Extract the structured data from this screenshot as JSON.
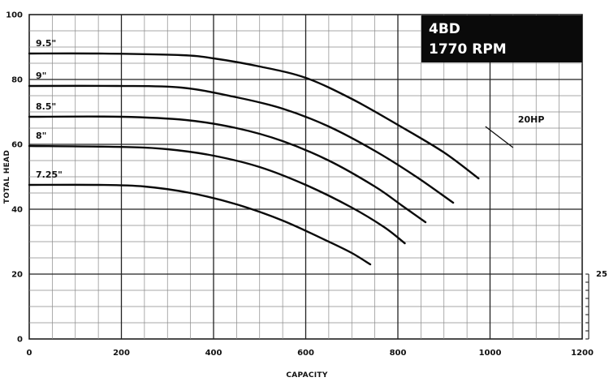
{
  "chart_data": {
    "type": "line",
    "title_lines": [
      "4BD",
      "1770 RPM"
    ],
    "xlabel": "CAPACITY",
    "ylabel": "TOTAL HEAD",
    "xlim": [
      0,
      1200
    ],
    "ylim": [
      0,
      100
    ],
    "x_ticks": [
      0,
      200,
      400,
      600,
      800,
      1000,
      1200
    ],
    "y_ticks": [
      0,
      20,
      40,
      60,
      80,
      100
    ],
    "grid": true,
    "series": [
      {
        "name": "9.5\"",
        "points": [
          [
            0,
            88
          ],
          [
            150,
            88
          ],
          [
            330,
            87.5
          ],
          [
            400,
            86.5
          ],
          [
            500,
            84
          ],
          [
            600,
            80.5
          ],
          [
            700,
            74
          ],
          [
            800,
            66
          ],
          [
            900,
            57.5
          ],
          [
            975,
            49.5
          ]
        ]
      },
      {
        "name": "9\"",
        "points": [
          [
            0,
            78
          ],
          [
            190,
            78
          ],
          [
            330,
            77.5
          ],
          [
            450,
            74.5
          ],
          [
            550,
            71
          ],
          [
            650,
            65.5
          ],
          [
            750,
            58
          ],
          [
            840,
            50
          ],
          [
            920,
            42
          ]
        ]
      },
      {
        "name": "8.5\"",
        "points": [
          [
            0,
            68.5
          ],
          [
            200,
            68.5
          ],
          [
            340,
            67.5
          ],
          [
            450,
            65
          ],
          [
            550,
            61
          ],
          [
            650,
            55
          ],
          [
            750,
            47
          ],
          [
            810,
            41
          ],
          [
            860,
            36
          ]
        ]
      },
      {
        "name": "8\"",
        "points": [
          [
            0,
            59.5
          ],
          [
            200,
            59.2
          ],
          [
            300,
            58.5
          ],
          [
            400,
            56.5
          ],
          [
            500,
            53
          ],
          [
            600,
            47.5
          ],
          [
            700,
            40.5
          ],
          [
            770,
            34.5
          ],
          [
            815,
            29.5
          ]
        ]
      },
      {
        "name": "7.25\"",
        "points": [
          [
            0,
            47.5
          ],
          [
            150,
            47.5
          ],
          [
            250,
            47
          ],
          [
            350,
            45
          ],
          [
            450,
            41.5
          ],
          [
            550,
            36.5
          ],
          [
            650,
            30
          ],
          [
            700,
            26.5
          ],
          [
            740,
            23
          ]
        ]
      }
    ],
    "hp_lines": [
      {
        "label": "20HP",
        "points": [
          [
            990,
            65.5
          ],
          [
            1050,
            59
          ]
        ]
      }
    ],
    "right_scale": {
      "label": "25",
      "value": 20
    }
  }
}
